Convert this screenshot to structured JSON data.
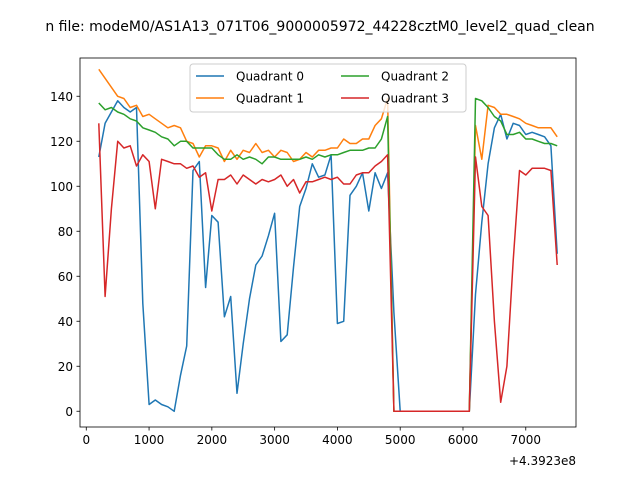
{
  "figure": {
    "title": "n file: modeM0/AS1A13_071T06_9000005972_44228cztM0_level2_quad_clean",
    "offset_label": "+4.3923e8"
  },
  "colors": {
    "Quadrant 0": "#1f77b4",
    "Quadrant 1": "#ff7f0e",
    "Quadrant 2": "#2ca02c",
    "Quadrant 3": "#d62728"
  },
  "chart_data": {
    "type": "line",
    "title": "n file: modeM0/AS1A13_071T06_9000005972_44228cztM0_level2_quad_clean",
    "xlabel": "",
    "ylabel": "",
    "x_offset": 439230000,
    "xlim": [
      -100,
      7800
    ],
    "ylim": [
      -7,
      157
    ],
    "xticks": [
      0,
      1000,
      2000,
      3000,
      4000,
      5000,
      6000,
      7000
    ],
    "yticks": [
      0,
      20,
      40,
      60,
      80,
      100,
      120,
      140
    ],
    "grid": false,
    "legend": {
      "position": "top-center",
      "ncol": 2
    },
    "series": [
      {
        "name": "Quadrant 0",
        "x": [
          200,
          300,
          400,
          500,
          600,
          700,
          800,
          900,
          1000,
          1100,
          1200,
          1300,
          1400,
          1500,
          1600,
          1700,
          1800,
          1900,
          2000,
          2100,
          2200,
          2300,
          2400,
          2500,
          2600,
          2700,
          2800,
          2900,
          3000,
          3100,
          3200,
          3300,
          3400,
          3500,
          3600,
          3700,
          3800,
          3900,
          4000,
          4100,
          4200,
          4300,
          4400,
          4500,
          4600,
          4700,
          4800,
          4900,
          5000,
          5100,
          5200,
          5300,
          5400,
          5500,
          5600,
          5700,
          5800,
          5900,
          6000,
          6100,
          6200,
          6300,
          6400,
          6500,
          6600,
          6700,
          6800,
          6900,
          7000,
          7100,
          7200,
          7300,
          7400,
          7500
        ],
        "y": [
          113,
          128,
          133,
          138,
          135,
          133,
          135,
          48,
          3,
          5,
          3,
          2,
          0,
          16,
          29,
          107,
          111,
          55,
          87,
          84,
          42,
          51,
          8,
          30,
          50,
          65,
          69,
          78,
          88,
          31,
          34,
          64,
          91,
          99,
          110,
          104,
          105,
          114,
          39,
          40,
          96,
          100,
          106,
          89,
          106,
          99,
          106,
          44,
          0,
          0,
          0,
          0,
          0,
          0,
          0,
          0,
          0,
          0,
          0,
          0,
          52,
          84,
          110,
          126,
          132,
          121,
          128,
          127,
          123,
          124,
          123,
          122,
          118,
          70
        ]
      },
      {
        "name": "Quadrant 1",
        "x": [
          200,
          300,
          400,
          500,
          600,
          700,
          800,
          900,
          1000,
          1100,
          1200,
          1300,
          1400,
          1500,
          1600,
          1700,
          1800,
          1900,
          2000,
          2100,
          2200,
          2300,
          2400,
          2500,
          2600,
          2700,
          2800,
          2900,
          3000,
          3100,
          3200,
          3300,
          3400,
          3500,
          3600,
          3700,
          3800,
          3900,
          4000,
          4100,
          4200,
          4300,
          4400,
          4500,
          4600,
          4700,
          4800,
          4900,
          5000,
          5100,
          5200,
          5300,
          5400,
          5500,
          5600,
          5700,
          5800,
          5900,
          6000,
          6100,
          6200,
          6300,
          6400,
          6500,
          6600,
          6700,
          6800,
          6900,
          7000,
          7100,
          7200,
          7300,
          7400,
          7500
        ],
        "y": [
          152,
          148,
          144,
          140,
          139,
          135,
          136,
          131,
          132,
          130,
          128,
          126,
          127,
          126,
          120,
          119,
          113,
          118,
          118,
          117,
          111,
          116,
          112,
          116,
          115,
          119,
          115,
          116,
          113,
          116,
          115,
          111,
          112,
          115,
          113,
          116,
          116,
          117,
          117,
          121,
          119,
          119,
          121,
          121,
          127,
          130,
          139,
          0,
          0,
          0,
          0,
          0,
          0,
          0,
          0,
          0,
          0,
          0,
          0,
          0,
          127,
          112,
          136,
          135,
          132,
          132,
          131,
          130,
          128,
          127,
          126,
          126,
          126,
          122
        ]
      },
      {
        "name": "Quadrant 2",
        "x": [
          200,
          300,
          400,
          500,
          600,
          700,
          800,
          900,
          1000,
          1100,
          1200,
          1300,
          1400,
          1500,
          1600,
          1700,
          1800,
          1900,
          2000,
          2100,
          2200,
          2300,
          2400,
          2500,
          2600,
          2700,
          2800,
          2900,
          3000,
          3100,
          3200,
          3300,
          3400,
          3500,
          3600,
          3700,
          3800,
          3900,
          4000,
          4100,
          4200,
          4300,
          4400,
          4500,
          4600,
          4700,
          4800,
          4900,
          5000,
          5100,
          5200,
          5300,
          5400,
          5500,
          5600,
          5700,
          5800,
          5900,
          6000,
          6100,
          6200,
          6300,
          6400,
          6500,
          6600,
          6700,
          6800,
          6900,
          7000,
          7100,
          7200,
          7300,
          7400,
          7500
        ],
        "y": [
          137,
          134,
          135,
          133,
          132,
          130,
          129,
          126,
          125,
          124,
          122,
          121,
          118,
          120,
          120,
          117,
          117,
          117,
          117,
          114,
          112,
          112,
          114,
          112,
          113,
          112,
          110,
          113,
          113,
          112,
          112,
          112,
          112,
          113,
          112,
          114,
          113,
          114,
          114,
          115,
          116,
          116,
          116,
          117,
          117,
          121,
          131,
          0,
          0,
          0,
          0,
          0,
          0,
          0,
          0,
          0,
          0,
          0,
          0,
          0,
          139,
          138,
          135,
          131,
          129,
          123,
          123,
          124,
          121,
          121,
          120,
          119,
          119,
          118
        ]
      },
      {
        "name": "Quadrant 3",
        "x": [
          200,
          300,
          400,
          500,
          600,
          700,
          800,
          900,
          1000,
          1100,
          1200,
          1300,
          1400,
          1500,
          1600,
          1700,
          1800,
          1900,
          2000,
          2100,
          2200,
          2300,
          2400,
          2500,
          2600,
          2700,
          2800,
          2900,
          3000,
          3100,
          3200,
          3300,
          3400,
          3500,
          3600,
          3700,
          3800,
          3900,
          4000,
          4100,
          4200,
          4300,
          4400,
          4500,
          4600,
          4700,
          4800,
          4900,
          5000,
          5100,
          5200,
          5300,
          5400,
          5500,
          5600,
          5700,
          5800,
          5900,
          6000,
          6100,
          6200,
          6300,
          6400,
          6500,
          6600,
          6700,
          6800,
          6900,
          7000,
          7100,
          7200,
          7300,
          7400,
          7500
        ],
        "y": [
          128,
          51,
          90,
          120,
          117,
          118,
          109,
          114,
          111,
          90,
          112,
          111,
          110,
          110,
          108,
          109,
          104,
          106,
          89,
          103,
          103,
          105,
          101,
          105,
          103,
          101,
          103,
          102,
          103,
          105,
          100,
          103,
          97,
          102,
          102,
          103,
          104,
          103,
          104,
          101,
          101,
          105,
          106,
          106,
          109,
          111,
          114,
          0,
          0,
          0,
          0,
          0,
          0,
          0,
          0,
          0,
          0,
          0,
          0,
          0,
          113,
          91,
          87,
          40,
          4,
          20,
          67,
          107,
          105,
          108,
          108,
          108,
          107,
          65
        ]
      }
    ]
  }
}
